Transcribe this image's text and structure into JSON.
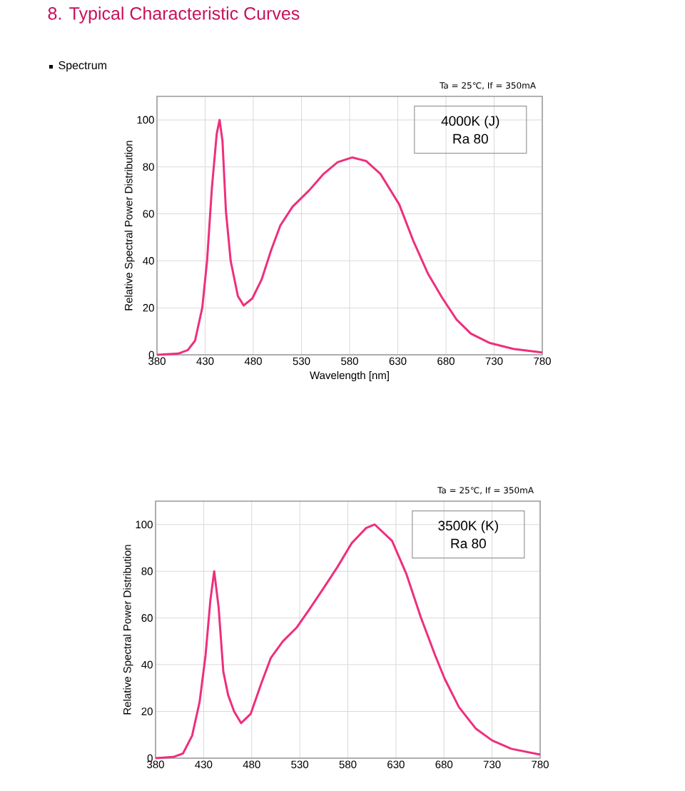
{
  "chart_data": [
    {
      "type": "line",
      "title": "8. Typical Characteristic Curves",
      "subtitle": "Spectrum",
      "xlabel": "Wavelength [nm]",
      "ylabel": "Relative Spectral Power Distribution",
      "annotations": [
        "Ta = 25℃, If = 350mA",
        "4000K (J)",
        "Ra 80"
      ],
      "series": [
        {
          "color": "#ee2f7c",
          "x": [
            380,
            402,
            412,
            419.5,
            427,
            432,
            437,
            442,
            445,
            448,
            451.6,
            456.5,
            464,
            470,
            479,
            488.6,
            498.5,
            508,
            520.7,
            538,
            553,
            567.6,
            582.5,
            597,
            612,
            631.5,
            646,
            661.5,
            676,
            691,
            705.9,
            725.7,
            750,
            780
          ],
          "values": [
            0,
            0.5,
            2,
            6,
            20,
            40,
            71,
            94,
            100,
            91,
            61,
            40,
            25,
            21,
            24,
            32,
            44.5,
            55,
            63,
            70,
            77,
            82,
            84,
            82.5,
            77,
            64,
            48.6,
            34.4,
            24.3,
            15,
            9,
            5,
            2.5,
            1
          ]
        }
      ],
      "xlim": [
        380,
        780
      ],
      "ylim": [
        0,
        110
      ],
      "xticks": [
        380,
        430,
        480,
        530,
        580,
        630,
        680,
        730,
        780
      ],
      "yticks": [
        0,
        20,
        40,
        60,
        80,
        100
      ],
      "grid": true
    },
    {
      "type": "line",
      "ylabel": "Relative Spectral Power Distribution",
      "annotations": [
        "Ta = 25℃, If = 350mA",
        "3500K (K)",
        "Ra 80"
      ],
      "series": [
        {
          "color": "#ee2f7c",
          "x": [
            380,
            398.6,
            408.5,
            418,
            425.8,
            432,
            437,
            441,
            445.6,
            450.5,
            455.5,
            461.7,
            469,
            479,
            490,
            500,
            512.4,
            527,
            539.7,
            554.5,
            569,
            584,
            599,
            608,
            626,
            641,
            655.8,
            670.8,
            680.7,
            695.6,
            713,
            730,
            750,
            780
          ],
          "values": [
            0,
            0.5,
            2,
            9.6,
            24,
            44,
            67.5,
            80,
            64.5,
            37,
            27,
            20,
            15,
            19,
            32,
            43,
            50,
            56,
            63.5,
            72.6,
            81.7,
            92,
            98.5,
            100,
            93,
            78.7,
            60.4,
            44,
            34,
            21.8,
            12.7,
            7.6,
            4,
            1.5
          ]
        }
      ],
      "xlim": [
        380,
        780
      ],
      "ylim": [
        0,
        110
      ],
      "xticks": [
        380,
        430,
        480,
        530,
        580,
        630,
        680,
        730,
        780
      ],
      "yticks": [
        0,
        20,
        40,
        60,
        80,
        100
      ],
      "grid": true
    }
  ]
}
